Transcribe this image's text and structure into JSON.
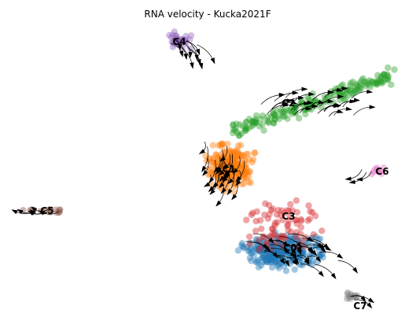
{
  "chart_data": {
    "type": "scatter",
    "title": "RNA velocity - Kucka2021F",
    "xlabel": "",
    "ylabel": "",
    "axes": "off",
    "grid": false,
    "legend": "none (clusters labeled on plot)",
    "clusters": [
      {
        "name": "C0",
        "color": "#1f77b4",
        "center": [
          367,
          315
        ],
        "spread": [
          75,
          35
        ],
        "n": 260
      },
      {
        "name": "C1",
        "color": "#ff7f0e",
        "center": [
          290,
          212
        ],
        "spread": [
          40,
          42
        ],
        "n": 250
      },
      {
        "name": "C2",
        "color": "#2ca02c",
        "center": [
          390,
          130
        ],
        "spread": [
          75,
          25
        ],
        "n": 190
      },
      {
        "name": "C3",
        "color": "#d62728",
        "center": [
          365,
          280
        ],
        "spread": [
          70,
          50
        ],
        "n": 80
      },
      {
        "name": "C4",
        "color": "#9467bd",
        "center": [
          228,
          52
        ],
        "spread": [
          25,
          15
        ],
        "n": 38
      },
      {
        "name": "C5",
        "color": "#8c564b",
        "center": [
          60,
          268
        ],
        "spread": [
          40,
          4
        ],
        "n": 16
      },
      {
        "name": "C6",
        "color": "#e377c2",
        "center": [
          478,
          218
        ],
        "spread": [
          15,
          10
        ],
        "n": 10
      },
      {
        "name": "C7",
        "color": "#7f7f7f",
        "center": [
          445,
          378
        ],
        "spread": [
          12,
          8
        ],
        "n": 12
      }
    ]
  }
}
